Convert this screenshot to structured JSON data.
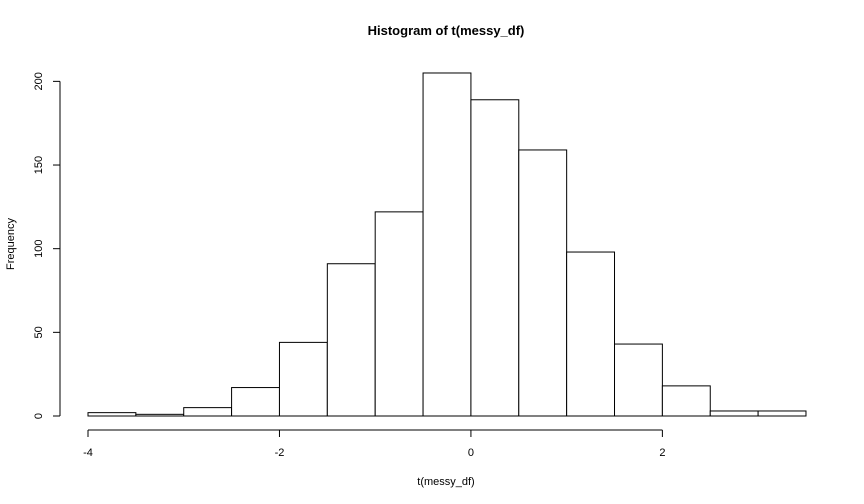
{
  "chart_data": {
    "type": "bar",
    "title": "Histogram of t(messy_df)",
    "xlabel": "t(messy_df)",
    "ylabel": "Frequency",
    "bin_width": 0.5,
    "bins": [
      {
        "start": -4.0,
        "end": -3.5,
        "count": 2
      },
      {
        "start": -3.5,
        "end": -3.0,
        "count": 1
      },
      {
        "start": -3.0,
        "end": -2.5,
        "count": 5
      },
      {
        "start": -2.5,
        "end": -2.0,
        "count": 17
      },
      {
        "start": -2.0,
        "end": -1.5,
        "count": 44
      },
      {
        "start": -1.5,
        "end": -1.0,
        "count": 91
      },
      {
        "start": -1.0,
        "end": -0.5,
        "count": 122
      },
      {
        "start": -0.5,
        "end": 0.0,
        "count": 205
      },
      {
        "start": 0.0,
        "end": 0.5,
        "count": 189
      },
      {
        "start": 0.5,
        "end": 1.0,
        "count": 159
      },
      {
        "start": 1.0,
        "end": 1.5,
        "count": 98
      },
      {
        "start": 1.5,
        "end": 2.0,
        "count": 43
      },
      {
        "start": 2.0,
        "end": 2.5,
        "count": 18
      },
      {
        "start": 2.5,
        "end": 3.0,
        "count": 3
      },
      {
        "start": 3.0,
        "end": 3.5,
        "count": 3
      }
    ],
    "xlim": [
      -4,
      3.5
    ],
    "ylim": [
      0,
      205
    ],
    "x_ticks": [
      -4,
      -2,
      0,
      2
    ],
    "x_tick_labels": [
      "-4",
      "-2",
      "0",
      "2"
    ],
    "y_ticks": [
      0,
      50,
      100,
      150,
      200
    ],
    "y_tick_labels": [
      "0",
      "50",
      "100",
      "150",
      "200"
    ],
    "grid": false,
    "legend": "none"
  }
}
